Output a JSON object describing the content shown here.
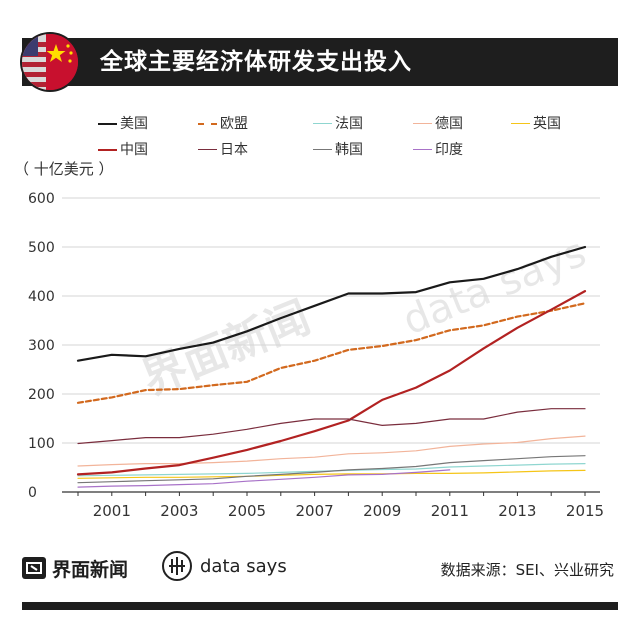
{
  "title": "全球主要经济体研发支出投入",
  "unit_label": "（ 十亿美元 ）",
  "footer": {
    "logo_text": "界面新闻",
    "brand_text": "data says",
    "source": "数据来源：SEI、兴业研究"
  },
  "chart_data": {
    "type": "line",
    "title": "全球主要经济体研发支出投入",
    "ylabel": "十亿美元",
    "xlabel": "",
    "ylim": [
      0,
      600
    ],
    "xlim": [
      2000,
      2015
    ],
    "yticks": [
      0,
      100,
      200,
      300,
      400,
      500,
      600
    ],
    "xticks": [
      2001,
      2003,
      2005,
      2007,
      2009,
      2011,
      2013,
      2015
    ],
    "series": [
      {
        "name": "美国",
        "color": "#1a1a1a",
        "width": 2.2,
        "dash": "",
        "x": [
          2000,
          2001,
          2002,
          2003,
          2004,
          2005,
          2006,
          2007,
          2008,
          2009,
          2010,
          2011,
          2012,
          2013,
          2014,
          2015
        ],
        "values": [
          268,
          280,
          277,
          292,
          305,
          328,
          355,
          380,
          405,
          405,
          408,
          428,
          435,
          455,
          480,
          500
        ]
      },
      {
        "name": "欧盟",
        "color": "#d2691e",
        "width": 2.2,
        "dash": "5,3",
        "x": [
          2000,
          2001,
          2002,
          2003,
          2004,
          2005,
          2006,
          2007,
          2008,
          2009,
          2010,
          2011,
          2012,
          2013,
          2014,
          2015
        ],
        "values": [
          182,
          193,
          208,
          210,
          218,
          225,
          253,
          268,
          290,
          298,
          310,
          330,
          340,
          358,
          370,
          385
        ]
      },
      {
        "name": "法国",
        "color": "#8fd6d0",
        "width": 1.2,
        "dash": "",
        "x": [
          2000,
          2001,
          2002,
          2003,
          2004,
          2005,
          2006,
          2007,
          2008,
          2009,
          2010,
          2011,
          2012,
          2013,
          2014,
          2015
        ],
        "values": [
          33,
          34,
          35,
          36,
          37,
          38,
          40,
          42,
          44,
          46,
          47,
          51,
          53,
          55,
          57,
          58
        ]
      },
      {
        "name": "德国",
        "color": "#f2b49a",
        "width": 1.2,
        "dash": "",
        "x": [
          2000,
          2001,
          2002,
          2003,
          2004,
          2005,
          2006,
          2007,
          2008,
          2009,
          2010,
          2011,
          2012,
          2013,
          2014,
          2015
        ],
        "values": [
          53,
          56,
          58,
          58,
          60,
          63,
          68,
          71,
          78,
          80,
          84,
          93,
          98,
          101,
          109,
          114
        ]
      },
      {
        "name": "英国",
        "color": "#f5c518",
        "width": 1.2,
        "dash": "",
        "x": [
          2000,
          2001,
          2002,
          2003,
          2004,
          2005,
          2006,
          2007,
          2008,
          2009,
          2010,
          2011,
          2012,
          2013,
          2014,
          2015
        ],
        "values": [
          28,
          29,
          30,
          30,
          31,
          32,
          34,
          36,
          37,
          37,
          38,
          38,
          39,
          41,
          43,
          44
        ]
      },
      {
        "name": "中国",
        "color": "#b22222",
        "width": 2.2,
        "dash": "",
        "x": [
          2000,
          2001,
          2002,
          2003,
          2004,
          2005,
          2006,
          2007,
          2008,
          2009,
          2010,
          2011,
          2012,
          2013,
          2014,
          2015
        ],
        "values": [
          36,
          40,
          48,
          55,
          70,
          86,
          104,
          124,
          146,
          188,
          213,
          248,
          293,
          335,
          372,
          410
        ]
      },
      {
        "name": "日本",
        "color": "#7a2d3d",
        "width": 1.2,
        "dash": "",
        "x": [
          2000,
          2001,
          2002,
          2003,
          2004,
          2005,
          2006,
          2007,
          2008,
          2009,
          2010,
          2011,
          2012,
          2013,
          2014,
          2015
        ],
        "values": [
          99,
          105,
          111,
          111,
          118,
          128,
          140,
          149,
          149,
          136,
          140,
          149,
          149,
          163,
          170,
          170
        ]
      },
      {
        "name": "韩国",
        "color": "#777777",
        "width": 1.2,
        "dash": "",
        "x": [
          2000,
          2001,
          2002,
          2003,
          2004,
          2005,
          2006,
          2007,
          2008,
          2009,
          2010,
          2011,
          2012,
          2013,
          2014,
          2015
        ],
        "values": [
          19,
          21,
          23,
          25,
          27,
          32,
          36,
          40,
          45,
          48,
          52,
          60,
          64,
          68,
          72,
          74
        ]
      },
      {
        "name": "印度",
        "color": "#a872c8",
        "width": 1.2,
        "dash": "",
        "x": [
          2000,
          2001,
          2002,
          2003,
          2004,
          2005,
          2006,
          2007,
          2008,
          2009,
          2010,
          2011
        ],
        "values": [
          10,
          12,
          13,
          15,
          17,
          22,
          26,
          30,
          35,
          36,
          40,
          45
        ]
      }
    ]
  }
}
